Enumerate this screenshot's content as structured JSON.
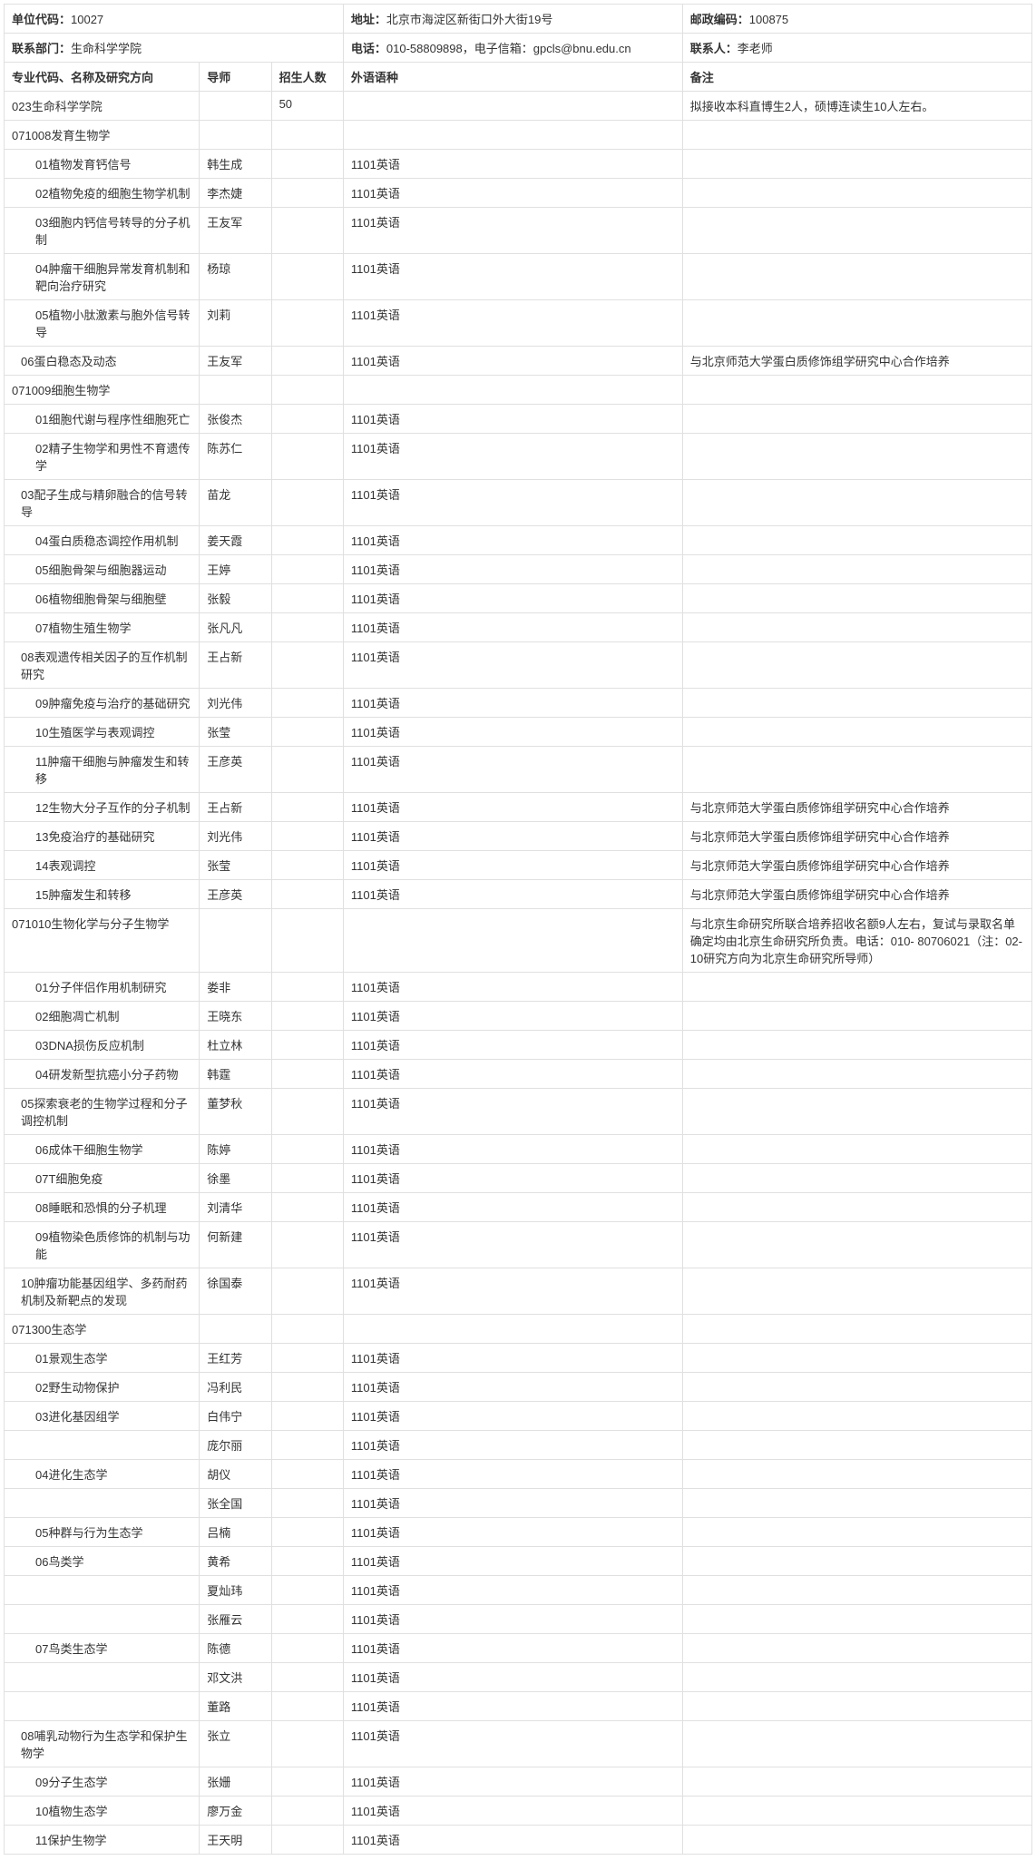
{
  "info": {
    "unit_code_label": "单位代码：",
    "unit_code": "10027",
    "address_label": "地址：",
    "address": "北京市海淀区新街口外大街19号",
    "postcode_label": "邮政编码：",
    "postcode": "100875",
    "dept_label": "联系部门：",
    "dept": "生命科学学院",
    "phone_label": "电话：",
    "phone": "010-58809898，电子信箱：gpcls@bnu.edu.cn",
    "contact_label": "联系人：",
    "contact": "李老师"
  },
  "columns": {
    "major": "专业代码、名称及研究方向",
    "advisor": "导师",
    "quota": "招生人数",
    "lang": "外语语种",
    "remark": "备注"
  },
  "lang_en": "1101英语",
  "rows": [
    {
      "indent": 0,
      "major": "023生命科学学院",
      "advisor": "",
      "quota": "50",
      "lang": "",
      "remark": "拟接收本科直博生2人，硕博连读生10人左右。"
    },
    {
      "indent": 0,
      "major": "071008发育生物学",
      "advisor": "",
      "quota": "",
      "lang": "",
      "remark": ""
    },
    {
      "indent": 2,
      "major": "01植物发育钙信号",
      "advisor": "韩生成",
      "quota": "",
      "lang": "1101英语",
      "remark": ""
    },
    {
      "indent": 2,
      "major": "02植物免疫的细胞生物学机制",
      "advisor": "李杰婕",
      "quota": "",
      "lang": "1101英语",
      "remark": ""
    },
    {
      "indent": 2,
      "major": "03细胞内钙信号转导的分子机制",
      "advisor": "王友军",
      "quota": "",
      "lang": "1101英语",
      "remark": ""
    },
    {
      "indent": 2,
      "major": "04肿瘤干细胞异常发育机制和靶向治疗研究",
      "advisor": "杨琼",
      "quota": "",
      "lang": "1101英语",
      "remark": ""
    },
    {
      "indent": 2,
      "major": "05植物小肽激素与胞外信号转导",
      "advisor": "刘莉",
      "quota": "",
      "lang": "1101英语",
      "remark": ""
    },
    {
      "indent": 1,
      "major": "06蛋白稳态及动态",
      "advisor": "王友军",
      "quota": "",
      "lang": "1101英语",
      "remark": "与北京师范大学蛋白质修饰组学研究中心合作培养"
    },
    {
      "indent": 0,
      "major": "071009细胞生物学",
      "advisor": "",
      "quota": "",
      "lang": "",
      "remark": ""
    },
    {
      "indent": 2,
      "major": "01细胞代谢与程序性细胞死亡",
      "advisor": "张俊杰",
      "quota": "",
      "lang": "1101英语",
      "remark": ""
    },
    {
      "indent": 2,
      "major": "02精子生物学和男性不育遗传学",
      "advisor": "陈苏仁",
      "quota": "",
      "lang": "1101英语",
      "remark": ""
    },
    {
      "indent": 1,
      "major": "03配子生成与精卵融合的信号转导",
      "advisor": "苗龙",
      "quota": "",
      "lang": "1101英语",
      "remark": ""
    },
    {
      "indent": 2,
      "major": "04蛋白质稳态调控作用机制",
      "advisor": "姜天霞",
      "quota": "",
      "lang": "1101英语",
      "remark": ""
    },
    {
      "indent": 2,
      "major": "05细胞骨架与细胞器运动",
      "advisor": "王婷",
      "quota": "",
      "lang": "1101英语",
      "remark": ""
    },
    {
      "indent": 2,
      "major": "06植物细胞骨架与细胞壁",
      "advisor": "张毅",
      "quota": "",
      "lang": "1101英语",
      "remark": ""
    },
    {
      "indent": 2,
      "major": "07植物生殖生物学",
      "advisor": "张凡凡",
      "quota": "",
      "lang": "1101英语",
      "remark": ""
    },
    {
      "indent": 1,
      "major": "08表观遗传相关因子的互作机制研究",
      "advisor": "王占新",
      "quota": "",
      "lang": "1101英语",
      "remark": ""
    },
    {
      "indent": 2,
      "major": "09肿瘤免疫与治疗的基础研究",
      "advisor": "刘光伟",
      "quota": "",
      "lang": "1101英语",
      "remark": ""
    },
    {
      "indent": 2,
      "major": "10生殖医学与表观调控",
      "advisor": "张莹",
      "quota": "",
      "lang": "1101英语",
      "remark": ""
    },
    {
      "indent": 2,
      "major": "11肿瘤干细胞与肿瘤发生和转移",
      "advisor": "王彦英",
      "quota": "",
      "lang": "1101英语",
      "remark": ""
    },
    {
      "indent": 2,
      "major": "12生物大分子互作的分子机制",
      "advisor": "王占新",
      "quota": "",
      "lang": "1101英语",
      "remark": "与北京师范大学蛋白质修饰组学研究中心合作培养"
    },
    {
      "indent": 2,
      "major": "13免疫治疗的基础研究",
      "advisor": "刘光伟",
      "quota": "",
      "lang": "1101英语",
      "remark": "与北京师范大学蛋白质修饰组学研究中心合作培养"
    },
    {
      "indent": 2,
      "major": "14表观调控",
      "advisor": "张莹",
      "quota": "",
      "lang": "1101英语",
      "remark": "与北京师范大学蛋白质修饰组学研究中心合作培养"
    },
    {
      "indent": 2,
      "major": "15肿瘤发生和转移",
      "advisor": "王彦英",
      "quota": "",
      "lang": "1101英语",
      "remark": "与北京师范大学蛋白质修饰组学研究中心合作培养"
    },
    {
      "indent": 0,
      "major": "071010生物化学与分子生物学",
      "advisor": "",
      "quota": "",
      "lang": "",
      "remark": "与北京生命研究所联合培养招收名额9人左右，复试与录取名单确定均由北京生命研究所负责。电话：010- 80706021（注：02-10研究方向为北京生命研究所导师）"
    },
    {
      "indent": 2,
      "major": "01分子伴侣作用机制研究",
      "advisor": "娄非",
      "quota": "",
      "lang": "1101英语",
      "remark": ""
    },
    {
      "indent": 2,
      "major": "02细胞凋亡机制",
      "advisor": "王晓东",
      "quota": "",
      "lang": "1101英语",
      "remark": ""
    },
    {
      "indent": 2,
      "major": "03DNA损伤反应机制",
      "advisor": "杜立林",
      "quota": "",
      "lang": "1101英语",
      "remark": ""
    },
    {
      "indent": 2,
      "major": "04研发新型抗癌小分子药物",
      "advisor": "韩霆",
      "quota": "",
      "lang": "1101英语",
      "remark": ""
    },
    {
      "indent": 1,
      "major": "05探索衰老的生物学过程和分子调控机制",
      "advisor": "董梦秋",
      "quota": "",
      "lang": "1101英语",
      "remark": ""
    },
    {
      "indent": 2,
      "major": "06成体干细胞生物学",
      "advisor": "陈婷",
      "quota": "",
      "lang": "1101英语",
      "remark": ""
    },
    {
      "indent": 2,
      "major": "07T细胞免疫",
      "advisor": "徐墨",
      "quota": "",
      "lang": "1101英语",
      "remark": ""
    },
    {
      "indent": 2,
      "major": "08睡眠和恐惧的分子机理",
      "advisor": "刘清华",
      "quota": "",
      "lang": "1101英语",
      "remark": ""
    },
    {
      "indent": 2,
      "major": "09植物染色质修饰的机制与功能",
      "advisor": "何新建",
      "quota": "",
      "lang": "1101英语",
      "remark": ""
    },
    {
      "indent": 1,
      "major": "10肿瘤功能基因组学、多药耐药机制及新靶点的发现",
      "advisor": "徐国泰",
      "quota": "",
      "lang": "1101英语",
      "remark": ""
    },
    {
      "indent": 0,
      "major": "071300生态学",
      "advisor": "",
      "quota": "",
      "lang": "",
      "remark": ""
    },
    {
      "indent": 2,
      "major": "01景观生态学",
      "advisor": "王红芳",
      "quota": "",
      "lang": "1101英语",
      "remark": ""
    },
    {
      "indent": 2,
      "major": "02野生动物保护",
      "advisor": "冯利民",
      "quota": "",
      "lang": "1101英语",
      "remark": ""
    },
    {
      "indent": 2,
      "major": "03进化基因组学",
      "advisor": "白伟宁",
      "quota": "",
      "lang": "1101英语",
      "remark": ""
    },
    {
      "indent": 2,
      "major": "",
      "advisor": "庞尔丽",
      "quota": "",
      "lang": "1101英语",
      "remark": ""
    },
    {
      "indent": 2,
      "major": "04进化生态学",
      "advisor": "胡仪",
      "quota": "",
      "lang": "1101英语",
      "remark": ""
    },
    {
      "indent": 2,
      "major": "",
      "advisor": "张全国",
      "quota": "",
      "lang": "1101英语",
      "remark": ""
    },
    {
      "indent": 2,
      "major": "05种群与行为生态学",
      "advisor": "吕楠",
      "quota": "",
      "lang": "1101英语",
      "remark": ""
    },
    {
      "indent": 2,
      "major": "06鸟类学",
      "advisor": "黄希",
      "quota": "",
      "lang": "1101英语",
      "remark": ""
    },
    {
      "indent": 2,
      "major": "",
      "advisor": "夏灿玮",
      "quota": "",
      "lang": "1101英语",
      "remark": ""
    },
    {
      "indent": 2,
      "major": "",
      "advisor": "张雁云",
      "quota": "",
      "lang": "1101英语",
      "remark": ""
    },
    {
      "indent": 2,
      "major": "07鸟类生态学",
      "advisor": "陈德",
      "quota": "",
      "lang": "1101英语",
      "remark": ""
    },
    {
      "indent": 2,
      "major": "",
      "advisor": "邓文洪",
      "quota": "",
      "lang": "1101英语",
      "remark": ""
    },
    {
      "indent": 2,
      "major": "",
      "advisor": "董路",
      "quota": "",
      "lang": "1101英语",
      "remark": ""
    },
    {
      "indent": 1,
      "major": "08哺乳动物行为生态学和保护生物学",
      "advisor": "张立",
      "quota": "",
      "lang": "1101英语",
      "remark": ""
    },
    {
      "indent": 2,
      "major": "09分子生态学",
      "advisor": "张姗",
      "quota": "",
      "lang": "1101英语",
      "remark": ""
    },
    {
      "indent": 2,
      "major": "10植物生态学",
      "advisor": "廖万金",
      "quota": "",
      "lang": "1101英语",
      "remark": ""
    },
    {
      "indent": 2,
      "major": "11保护生物学",
      "advisor": "王天明",
      "quota": "",
      "lang": "1101英语",
      "remark": ""
    }
  ]
}
